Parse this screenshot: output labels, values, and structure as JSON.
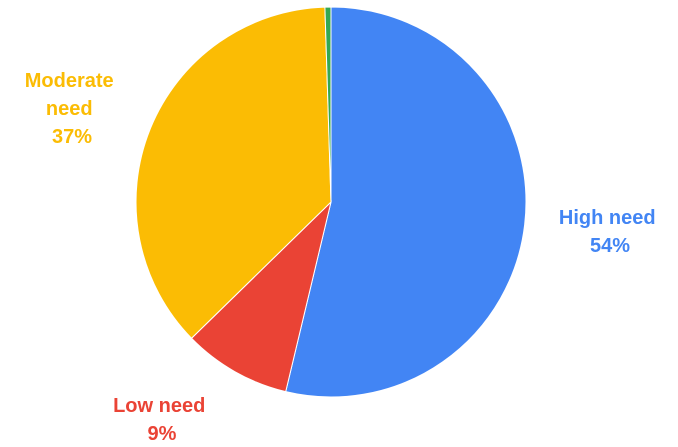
{
  "chart_data": {
    "type": "pie",
    "title": "",
    "slices": [
      {
        "name": "High need",
        "value": 54,
        "label": "54%",
        "color": "#4285F4"
      },
      {
        "name": "Low need",
        "value": 9,
        "label": "9%",
        "color": "#EA4335"
      },
      {
        "name": "Moderate need",
        "value": 37,
        "label": "37%",
        "color": "#FBBC04"
      },
      {
        "name": "",
        "value": 0.5,
        "label": "",
        "color": "#34A853"
      }
    ],
    "start_angle_deg": 0,
    "direction": "clockwise",
    "legend": "none"
  }
}
